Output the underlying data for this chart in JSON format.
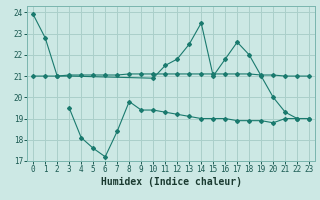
{
  "title": "",
  "xlabel": "Humidex (Indice chaleur)",
  "ylabel": "",
  "background_color": "#cce8e4",
  "line_color": "#1a7a6e",
  "xlim": [
    -0.5,
    23.5
  ],
  "ylim": [
    17,
    24.3
  ],
  "yticks": [
    17,
    18,
    19,
    20,
    21,
    22,
    23,
    24
  ],
  "xticks": [
    0,
    1,
    2,
    3,
    4,
    5,
    6,
    7,
    8,
    9,
    10,
    11,
    12,
    13,
    14,
    15,
    16,
    17,
    18,
    19,
    20,
    21,
    22,
    23
  ],
  "line1_x": [
    0,
    1,
    2,
    3,
    10,
    11,
    12,
    13,
    14,
    15,
    16,
    17,
    18,
    19,
    20,
    21,
    22,
    23
  ],
  "line1_y": [
    23.9,
    22.8,
    21.0,
    21.0,
    20.9,
    21.5,
    21.8,
    22.5,
    23.5,
    21.0,
    21.8,
    22.6,
    22.0,
    21.0,
    20.0,
    19.3,
    19.0,
    19.0
  ],
  "line2_x": [
    0,
    1,
    2,
    3,
    4,
    5,
    6,
    7,
    8,
    9,
    10,
    11,
    12,
    13,
    14,
    15,
    16,
    17,
    18,
    19,
    20,
    21,
    22,
    23
  ],
  "line2_y": [
    21.0,
    21.0,
    21.0,
    21.05,
    21.05,
    21.05,
    21.05,
    21.05,
    21.1,
    21.1,
    21.1,
    21.1,
    21.1,
    21.1,
    21.1,
    21.1,
    21.1,
    21.1,
    21.1,
    21.05,
    21.05,
    21.0,
    21.0,
    21.0
  ],
  "line3_x": [
    3,
    4,
    5,
    6,
    7,
    8,
    9,
    10,
    11,
    12,
    13,
    14,
    15,
    16,
    17,
    18,
    19,
    20,
    21,
    22,
    23
  ],
  "line3_y": [
    19.5,
    18.1,
    17.6,
    17.2,
    18.4,
    19.8,
    19.4,
    19.4,
    19.3,
    19.2,
    19.1,
    19.0,
    19.0,
    19.0,
    18.9,
    18.9,
    18.9,
    18.8,
    19.0,
    19.0,
    19.0
  ],
  "grid_color": "#aacfca",
  "tick_fontsize": 5.5,
  "label_fontsize": 7.0
}
